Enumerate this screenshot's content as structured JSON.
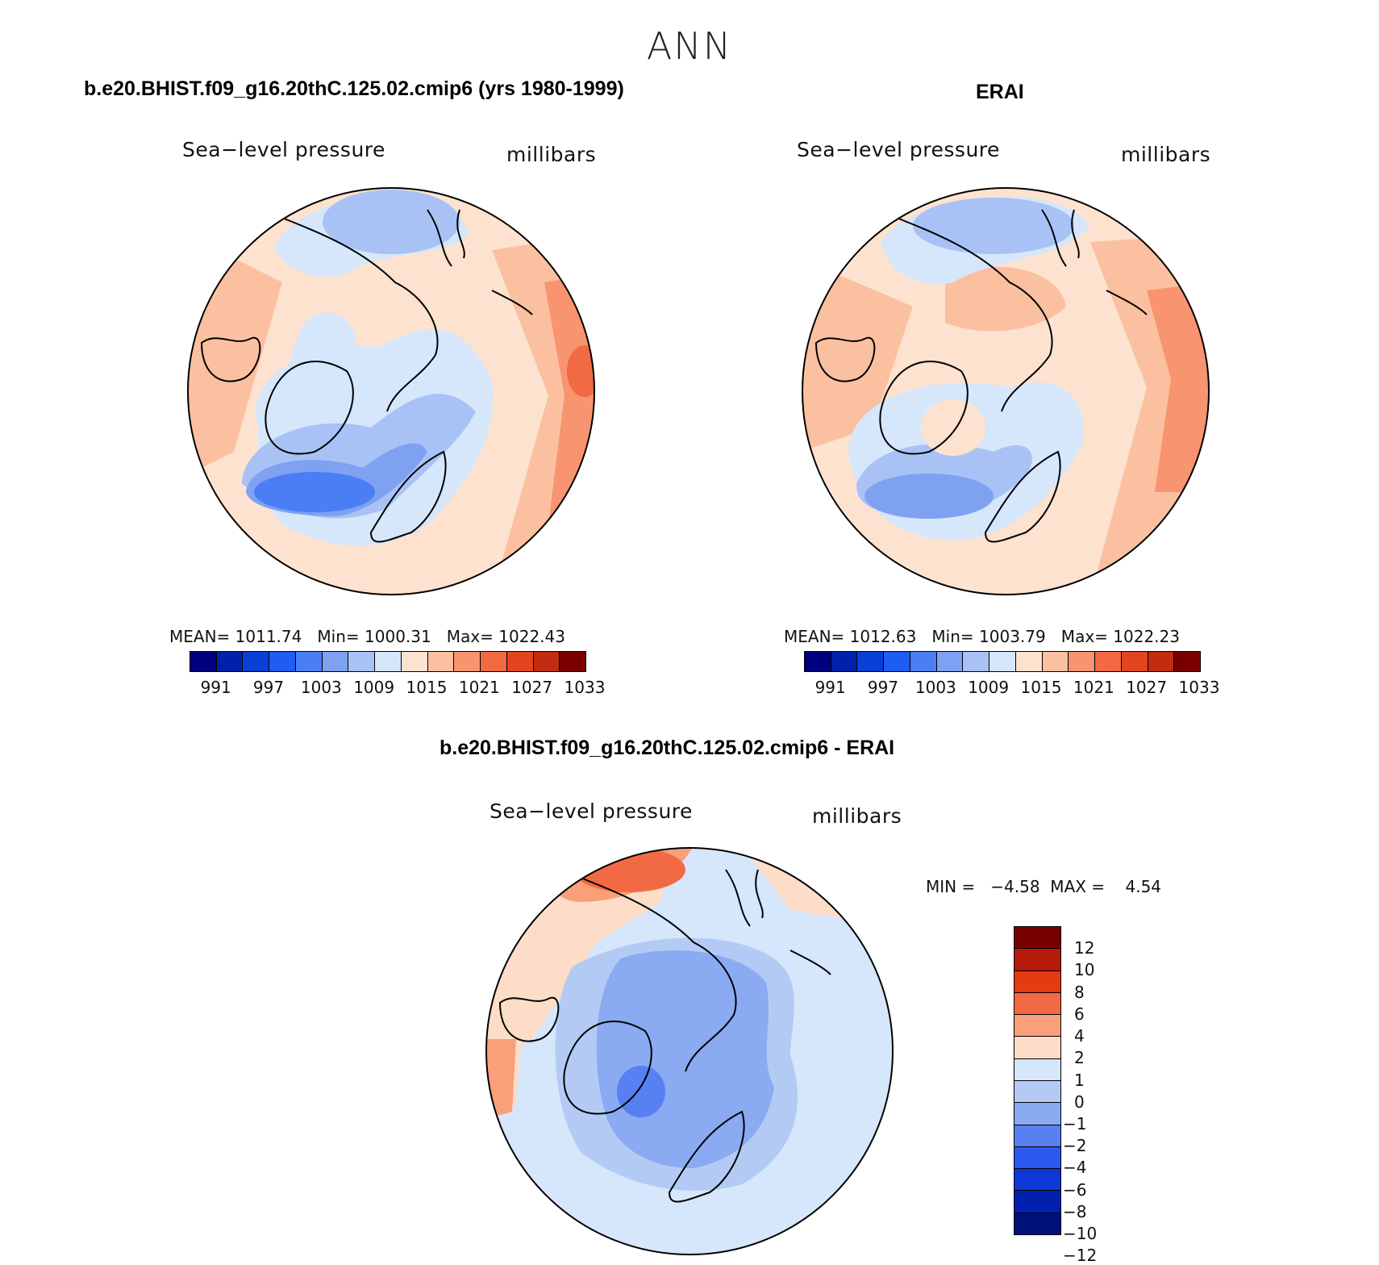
{
  "season": "ANN",
  "panels": {
    "model": {
      "title": "b.e20.BHIST.f09_g16.20thC.125.02.cmip6 (yrs 1980-1999)",
      "variable": "Sea−level pressure",
      "units": "millibars",
      "stats": "MEAN= 1011.74   Min= 1000.31   Max= 1022.43"
    },
    "obs": {
      "title": "ERAI",
      "variable": "Sea−level pressure",
      "units": "millibars",
      "stats": "MEAN= 1012.63   Min= 1003.79   Max= 1022.23"
    },
    "diff": {
      "title": "b.e20.BHIST.f09_g16.20thC.125.02.cmip6 - ERAI",
      "variable": "Sea−level pressure",
      "units": "millibars",
      "stats": "MIN =   −4.58  MAX =    4.54"
    }
  },
  "chart_data": [
    {
      "type": "heatmap",
      "title": "b.e20.BHIST.f09_g16.20thC.125.02.cmip6 (yrs 1980-1999)",
      "projection": "north polar stereographic",
      "variable": "Sea-level pressure",
      "units": "millibars",
      "mean": 1011.74,
      "min": 1000.31,
      "max": 1022.43,
      "colorbar_levels": [
        991,
        994,
        997,
        1000,
        1003,
        1006,
        1009,
        1012,
        1015,
        1018,
        1021,
        1024,
        1027,
        1030,
        1033
      ],
      "colorbar_tick_labels": [
        "991",
        "997",
        "1003",
        "1009",
        "1015",
        "1021",
        "1027",
        "1033"
      ]
    },
    {
      "type": "heatmap",
      "title": "ERAI",
      "projection": "north polar stereographic",
      "variable": "Sea-level pressure",
      "units": "millibars",
      "mean": 1012.63,
      "min": 1003.79,
      "max": 1022.23,
      "colorbar_levels": [
        991,
        994,
        997,
        1000,
        1003,
        1006,
        1009,
        1012,
        1015,
        1018,
        1021,
        1024,
        1027,
        1030,
        1033
      ],
      "colorbar_tick_labels": [
        "991",
        "997",
        "1003",
        "1009",
        "1015",
        "1021",
        "1027",
        "1033"
      ]
    },
    {
      "type": "heatmap",
      "title": "b.e20.BHIST.f09_g16.20thC.125.02.cmip6 - ERAI",
      "projection": "north polar stereographic",
      "variable": "Sea-level pressure",
      "units": "millibars",
      "min": -4.58,
      "max": 4.54,
      "colorbar_levels": [
        12,
        10,
        8,
        6,
        4,
        2,
        1,
        0,
        -1,
        -2,
        -4,
        -6,
        -8,
        -10,
        -12
      ],
      "colorbar_tick_labels": [
        "12",
        "10",
        "8",
        "6",
        "4",
        "2",
        "1",
        "0",
        "−1",
        "−2",
        "−4",
        "−6",
        "−8",
        "−10",
        "−12"
      ]
    }
  ],
  "colors": {
    "abs_palette": [
      "#00007f",
      "#0022aa",
      "#0a3fd6",
      "#1f5cf2",
      "#4b7df5",
      "#7fa1f2",
      "#a9c2f5",
      "#d6e6fb",
      "#fde2cf",
      "#fbc0a0",
      "#f8946f",
      "#f26a43",
      "#e24520",
      "#c22c10",
      "#7a0000"
    ],
    "diff_palette": [
      "#7a0000",
      "#b51a0a",
      "#e23c10",
      "#f26a43",
      "#f9a07a",
      "#fdddc8",
      "#d6e6fb",
      "#b3cbf4",
      "#8aaaf2",
      "#5780f2",
      "#2d58ee",
      "#0f36d6",
      "#0020b0",
      "#00107a"
    ]
  }
}
